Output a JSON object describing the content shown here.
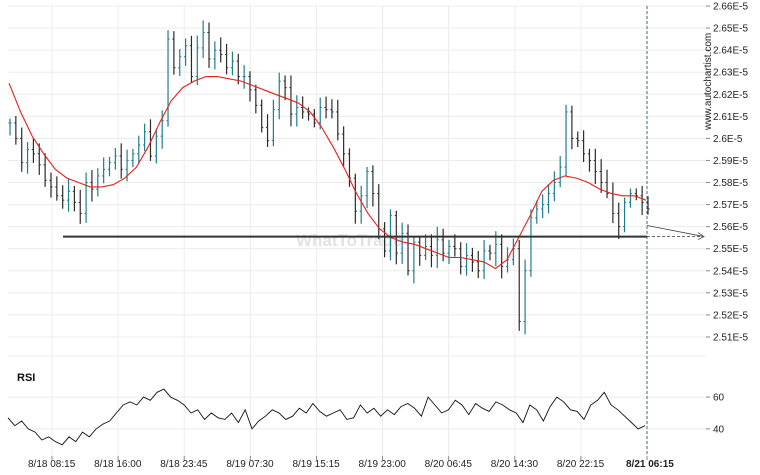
{
  "brand": "www.autochartist.com",
  "watermark": "WhatToTrade",
  "chart_data": {
    "type": "line",
    "price_axis": {
      "ylim": [
        2.505,
        2.66
      ],
      "tick_labels": [
        "2.66E-5",
        "2.65E-5",
        "2.64E-5",
        "2.63E-5",
        "2.62E-5",
        "2.61E-5",
        "2.6E-5",
        "2.59E-5",
        "2.58E-5",
        "2.57E-5",
        "2.56E-5",
        "2.55E-5",
        "2.54E-5",
        "2.53E-5",
        "2.52E-5",
        "2.51E-5"
      ],
      "tick_values": [
        2.66,
        2.65,
        2.64,
        2.63,
        2.62,
        2.61,
        2.6,
        2.59,
        2.58,
        2.57,
        2.56,
        2.55,
        2.54,
        2.53,
        2.52,
        2.51
      ]
    },
    "time_axis": {
      "tick_labels": [
        "8/18 08:15",
        "8/18 16:00",
        "8/18 23:45",
        "8/19 07:30",
        "8/19 15:15",
        "8/19 23:00",
        "8/20 06:45",
        "8/20 14:30",
        "8/20 22:15",
        "8/21 06:15"
      ],
      "current_label": "8/21 06:15"
    },
    "price_series": [
      2.607,
      2.6,
      2.589,
      2.595,
      2.593,
      2.588,
      2.581,
      2.578,
      2.574,
      2.572,
      2.576,
      2.571,
      2.566,
      2.58,
      2.577,
      2.583,
      2.586,
      2.589,
      2.592,
      2.586,
      2.59,
      2.593,
      2.597,
      2.603,
      2.592,
      2.601,
      2.608,
      2.645,
      2.632,
      2.637,
      2.642,
      2.628,
      2.641,
      2.648,
      2.636,
      2.64,
      2.638,
      2.632,
      2.635,
      2.628,
      2.628,
      2.622,
      2.615,
      2.605,
      2.599,
      2.613,
      2.626,
      2.623,
      2.611,
      2.614,
      2.612,
      2.611,
      2.607,
      2.614,
      2.613,
      2.612,
      2.602,
      2.593,
      2.582,
      2.567,
      2.574,
      2.585,
      2.575,
      2.559,
      2.549,
      2.565,
      2.548,
      2.557,
      2.54,
      2.553,
      2.547,
      2.551,
      2.547,
      2.554,
      2.548,
      2.551,
      2.55,
      2.542,
      2.547,
      2.544,
      2.54,
      2.549,
      2.548,
      2.552,
      2.542,
      2.545,
      2.55,
      2.517,
      2.54,
      2.564,
      2.568,
      2.57,
      2.575,
      2.58,
      2.587,
      2.612,
      2.6,
      2.599,
      2.593,
      2.59,
      2.585,
      2.58,
      2.575,
      2.566,
      2.56,
      2.571,
      2.575,
      2.574,
      2.571,
      2.568
    ],
    "moving_average": [
      2.625,
      2.612,
      2.601,
      2.593,
      2.586,
      2.582,
      2.58,
      2.578,
      2.578,
      2.579,
      2.582,
      2.587,
      2.596,
      2.607,
      2.617,
      2.623,
      2.626,
      2.628,
      2.628,
      2.627,
      2.626,
      2.624,
      2.622,
      2.62,
      2.618,
      2.616,
      2.612,
      2.605,
      2.596,
      2.586,
      2.575,
      2.566,
      2.559,
      2.555,
      2.553,
      2.552,
      2.55,
      2.548,
      2.546,
      2.546,
      2.545,
      2.544,
      2.541,
      2.545,
      2.555,
      2.565,
      2.576,
      2.581,
      2.583,
      2.582,
      2.58,
      2.577,
      2.575,
      2.574,
      2.574,
      2.572
    ],
    "support_level": 2.5555,
    "projection": {
      "from": 2.5605,
      "to": 2.5555
    },
    "rsi": {
      "title": "RSI",
      "ylim": [
        28,
        72
      ],
      "tick_values": [
        60,
        40
      ],
      "tick_labels": [
        "60",
        "40"
      ],
      "values": [
        47,
        42,
        45,
        40,
        38,
        33,
        35,
        32,
        30,
        35,
        32,
        38,
        35,
        40,
        43,
        45,
        50,
        55,
        57,
        55,
        60,
        58,
        63,
        65,
        60,
        58,
        55,
        50,
        52,
        46,
        50,
        47,
        46,
        50,
        44,
        52,
        40,
        45,
        48,
        52,
        50,
        46,
        48,
        53,
        50,
        56,
        51,
        48,
        50,
        52,
        46,
        47,
        55,
        50,
        53,
        48,
        52,
        49,
        54,
        56,
        53,
        48,
        60,
        55,
        50,
        52,
        58,
        55,
        49,
        56,
        53,
        51,
        57,
        55,
        52,
        50,
        44,
        55,
        52,
        45,
        54,
        60,
        57,
        52,
        51,
        46,
        55,
        58,
        63,
        55,
        52,
        48,
        44,
        40,
        42
      ]
    }
  }
}
